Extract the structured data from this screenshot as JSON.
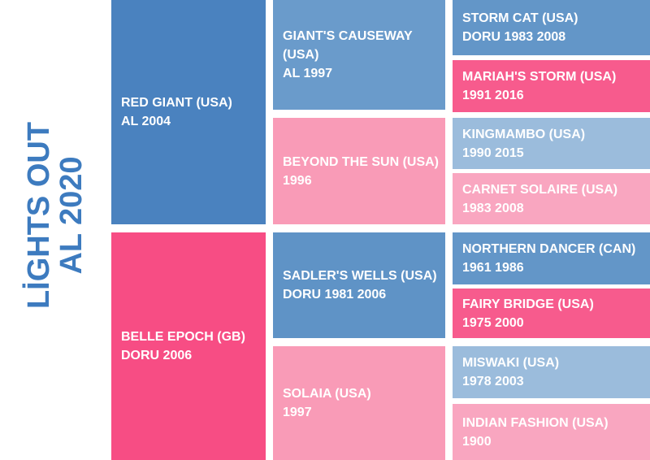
{
  "title": {
    "line1": "LİGHTS OUT",
    "line2": "AL 2020"
  },
  "nodes": [
    {
      "name": "RED GIANT (USA)",
      "detail": "AL 2004"
    },
    {
      "name": "BELLE EPOCH (GB)",
      "detail": "DORU 2006"
    },
    {
      "name": "GIANT'S CAUSEWAY (USA)",
      "detail": "AL 1997"
    },
    {
      "name": "BEYOND THE SUN (USA)",
      "detail": "1996"
    },
    {
      "name": "SADLER'S WELLS (USA)",
      "detail": "DORU 1981 2006"
    },
    {
      "name": "SOLAIA (USA)",
      "detail": "1997"
    },
    {
      "name": "STORM CAT (USA)",
      "detail": "DORU 1983 2008"
    },
    {
      "name": "MARIAH'S STORM (USA)",
      "detail": "1991 2016"
    },
    {
      "name": "KINGMAMBO (USA)",
      "detail": "1990 2015"
    },
    {
      "name": "CARNET SOLAIRE (USA)",
      "detail": "1983 2008"
    },
    {
      "name": "NORTHERN DANCER (CAN)",
      "detail": "1961 1986"
    },
    {
      "name": "FAIRY BRIDGE (USA)",
      "detail": "1975 2000"
    },
    {
      "name": "MISWAKI (USA)",
      "detail": "1978 2003"
    },
    {
      "name": "INDIAN FASHION (USA)",
      "detail": "1900"
    }
  ]
}
